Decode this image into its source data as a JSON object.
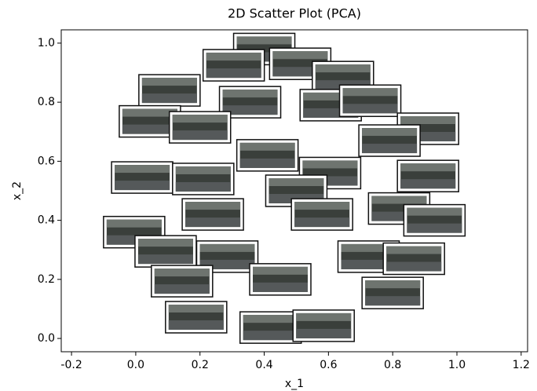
{
  "chart_data": {
    "type": "scatter",
    "title": "2D Scatter Plot (PCA)",
    "x_label": "x_1",
    "y_label": "x_2",
    "xlim": [
      -0.232,
      1.22
    ],
    "ylim": [
      -0.045,
      1.045
    ],
    "xticks": [
      -0.2,
      {
        "value": 0,
        "label": "0.0"
      },
      0.2,
      0.4,
      0.6,
      0.8,
      {
        "value": 1,
        "label": "1.0"
      },
      1.2
    ],
    "yticks": [
      {
        "value": 0,
        "label": "0.0"
      },
      0.2,
      0.4,
      0.6,
      0.8,
      {
        "value": 1,
        "label": "1.0"
      }
    ],
    "series": [
      {
        "color": "#3a3f3b",
        "x": [
          0.4,
          0.305,
          0.512,
          0.645,
          0.105,
          0.356,
          0.607,
          0.73,
          0.044,
          0.2,
          0.91,
          0.79,
          0.41,
          0.02,
          0.21,
          0.605,
          0.91,
          0.5,
          0.24,
          0.58,
          0.82,
          0.93,
          -0.005,
          0.093,
          0.285,
          0.725,
          0.866,
          0.144,
          0.45,
          0.8,
          0.188,
          0.42,
          0.585
        ],
        "values": [
          0.98,
          0.925,
          0.93,
          0.885,
          0.84,
          0.8,
          0.79,
          0.805,
          0.735,
          0.715,
          0.71,
          0.67,
          0.62,
          0.545,
          0.54,
          0.56,
          0.55,
          0.5,
          0.42,
          0.42,
          0.44,
          0.4,
          0.36,
          0.295,
          0.277,
          0.277,
          0.27,
          0.194,
          0.2,
          0.154,
          0.072,
          0.037,
          0.043
        ]
      }
    ]
  }
}
